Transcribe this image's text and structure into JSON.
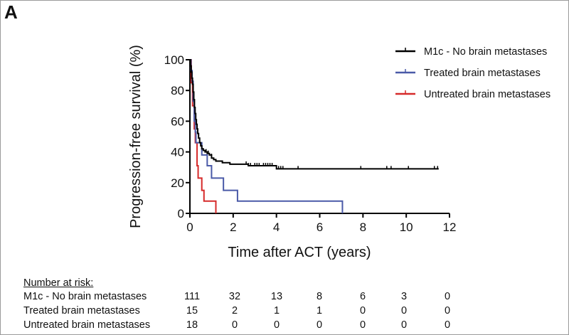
{
  "panel_label": "A",
  "chart_data": {
    "type": "line",
    "subtype": "kaplan-meier",
    "title": "",
    "xlabel": "Time after ACT (years)",
    "ylabel": "Progression-free survival (%)",
    "xlim": [
      0,
      12
    ],
    "ylim": [
      0,
      100
    ],
    "xticks": [
      0,
      2,
      4,
      6,
      8,
      10,
      12
    ],
    "yticks": [
      0,
      20,
      40,
      60,
      80,
      100
    ],
    "grid": false,
    "legend_position": "top-right",
    "series": [
      {
        "name": "M1c - No brain metastases",
        "color": "#000000",
        "steps": [
          [
            0,
            100
          ],
          [
            0.03,
            96
          ],
          [
            0.06,
            92
          ],
          [
            0.09,
            88
          ],
          [
            0.12,
            84
          ],
          [
            0.15,
            79
          ],
          [
            0.18,
            74
          ],
          [
            0.21,
            69
          ],
          [
            0.24,
            65
          ],
          [
            0.27,
            61
          ],
          [
            0.3,
            58
          ],
          [
            0.33,
            55
          ],
          [
            0.36,
            52
          ],
          [
            0.4,
            49
          ],
          [
            0.45,
            46
          ],
          [
            0.5,
            44
          ],
          [
            0.55,
            42
          ],
          [
            0.62,
            41
          ],
          [
            0.7,
            40
          ],
          [
            0.8,
            39
          ],
          [
            0.9,
            38
          ],
          [
            1.0,
            36
          ],
          [
            1.1,
            35
          ],
          [
            1.2,
            34
          ],
          [
            1.5,
            33
          ],
          [
            1.85,
            32
          ],
          [
            2.7,
            31
          ],
          [
            4.0,
            29
          ],
          [
            11.5,
            29
          ]
        ],
        "censored": [
          [
            0.75,
            40
          ],
          [
            0.85,
            39
          ],
          [
            1.0,
            37
          ],
          [
            2.6,
            32
          ],
          [
            2.7,
            31
          ],
          [
            2.8,
            31
          ],
          [
            3.0,
            31
          ],
          [
            3.1,
            31
          ],
          [
            3.2,
            31
          ],
          [
            3.4,
            31
          ],
          [
            3.5,
            31
          ],
          [
            3.6,
            31
          ],
          [
            3.7,
            31
          ],
          [
            3.8,
            31
          ],
          [
            4.1,
            29
          ],
          [
            4.2,
            29
          ],
          [
            4.3,
            29
          ],
          [
            5.0,
            29
          ],
          [
            7.9,
            29
          ],
          [
            9.1,
            29
          ],
          [
            9.3,
            29
          ],
          [
            10.1,
            29
          ],
          [
            11.3,
            29
          ],
          [
            11.45,
            29
          ]
        ]
      },
      {
        "name": "Treated brain metastases",
        "color": "#4a5aa8",
        "steps": [
          [
            0,
            100
          ],
          [
            0.05,
            93
          ],
          [
            0.1,
            86
          ],
          [
            0.15,
            73
          ],
          [
            0.2,
            60
          ],
          [
            0.25,
            53
          ],
          [
            0.28,
            46
          ],
          [
            0.55,
            46
          ],
          [
            0.55,
            38
          ],
          [
            0.8,
            38
          ],
          [
            0.8,
            31
          ],
          [
            1.0,
            31
          ],
          [
            1.0,
            23
          ],
          [
            1.55,
            23
          ],
          [
            1.55,
            15
          ],
          [
            2.2,
            15
          ],
          [
            2.2,
            8
          ],
          [
            7.05,
            8
          ],
          [
            7.05,
            0
          ]
        ],
        "censored": []
      },
      {
        "name": "Untreated brain metastases",
        "color": "#d62a2a",
        "steps": [
          [
            0,
            100
          ],
          [
            0.06,
            85
          ],
          [
            0.12,
            70
          ],
          [
            0.2,
            55
          ],
          [
            0.25,
            46
          ],
          [
            0.33,
            46
          ],
          [
            0.33,
            31
          ],
          [
            0.38,
            23
          ],
          [
            0.55,
            23
          ],
          [
            0.55,
            15
          ],
          [
            0.65,
            15
          ],
          [
            0.65,
            8
          ],
          [
            1.2,
            8
          ],
          [
            1.2,
            0
          ]
        ],
        "censored": []
      }
    ]
  },
  "risk_table": {
    "title": "Number at risk:",
    "timepoints": [
      0,
      2,
      4,
      6,
      8,
      10,
      12
    ],
    "rows": [
      {
        "label": "M1c - No brain metastases",
        "values": [
          "111",
          "32",
          "13",
          "8",
          "6",
          "3",
          "0"
        ]
      },
      {
        "label": "Treated brain metastases",
        "values": [
          "15",
          "2",
          "1",
          "1",
          "0",
          "0",
          "0"
        ]
      },
      {
        "label": "Untreated brain metastases",
        "values": [
          "18",
          "0",
          "0",
          "0",
          "0",
          "0",
          "0"
        ]
      }
    ]
  }
}
